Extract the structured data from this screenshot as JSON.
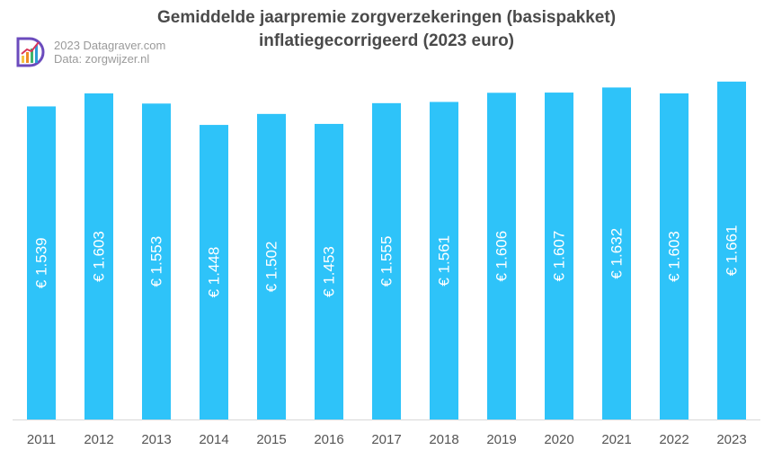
{
  "chart_data": {
    "type": "bar",
    "title": "Gemiddelde jaarpremie zorgverzekeringen (basispakket)",
    "subtitle": "inflatiegecorrigeerd (2023 euro)",
    "categories": [
      "2011",
      "2012",
      "2013",
      "2014",
      "2015",
      "2016",
      "2017",
      "2018",
      "2019",
      "2020",
      "2021",
      "2022",
      "2023"
    ],
    "values": [
      1539,
      1603,
      1553,
      1448,
      1502,
      1453,
      1555,
      1561,
      1606,
      1607,
      1632,
      1603,
      1661
    ],
    "value_labels": [
      "€ 1.539",
      "€ 1.603",
      "€ 1.553",
      "€ 1.448",
      "€ 1.502",
      "€ 1.453",
      "€ 1.555",
      "€ 1.561",
      "€ 1.606",
      "€ 1.607",
      "€ 1.632",
      "€ 1.603",
      "€ 1.661"
    ],
    "xlabel": "",
    "ylabel": "",
    "ylim": [
      0,
      1700
    ],
    "grid": false,
    "bar_color": "#2ec3f9",
    "axis_color": "#d9d9d9",
    "label_color": "#ffffff"
  },
  "credit": {
    "source_line": "2023 Datagraver.com",
    "data_line": "Data: zorgwijzer.nl"
  },
  "logo": {
    "icon": "datagraver-logo-icon"
  }
}
